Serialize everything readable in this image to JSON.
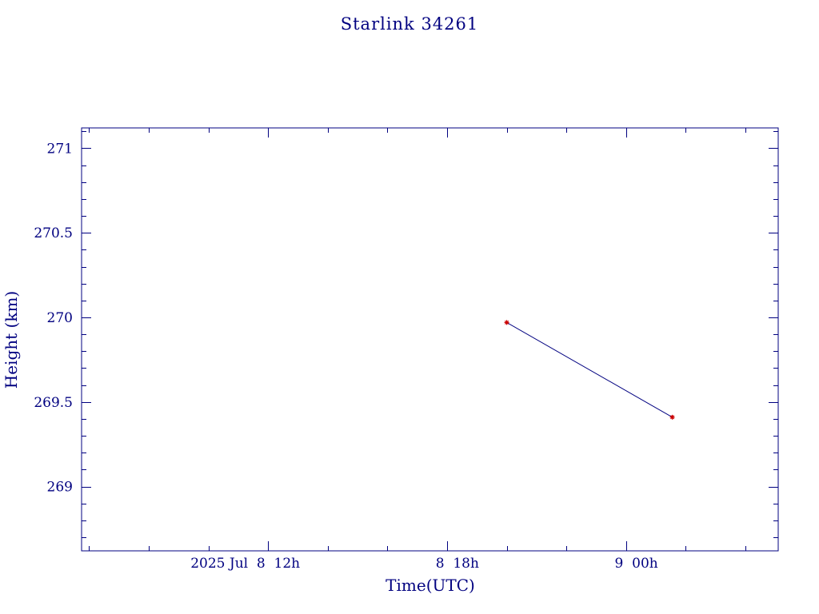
{
  "colors": {
    "background": "#ffffff",
    "axis": "#000080",
    "text": "#000080",
    "line": "#000080",
    "marker": "#cc0000"
  },
  "chart_data": {
    "type": "line",
    "title": "Starlink 34261",
    "xlabel": "Time(UTC)",
    "ylabel": "Height (km)",
    "x_unit": "hours",
    "x_range_hours": [
      5.75,
      29.1
    ],
    "x_major_tick_labels": [
      {
        "x": 12,
        "label": "2025 Jul  8  12h"
      },
      {
        "x": 18,
        "label": "8  18h"
      },
      {
        "x": 24,
        "label": "9  00h"
      }
    ],
    "x_minor_step_hours": 2,
    "ylim": [
      268.62,
      271.12
    ],
    "y_major_ticks": [
      269,
      269.5,
      270,
      270.5,
      271
    ],
    "y_tick_labels": [
      "269",
      "269.5",
      "270",
      "270.5",
      "271"
    ],
    "y_minor_step": 0.1,
    "grid": false,
    "legend": "none",
    "series": [
      {
        "x_hours": [
          20.0,
          25.55
        ],
        "values": [
          269.97,
          269.41
        ],
        "marker": "asterisk"
      }
    ]
  }
}
